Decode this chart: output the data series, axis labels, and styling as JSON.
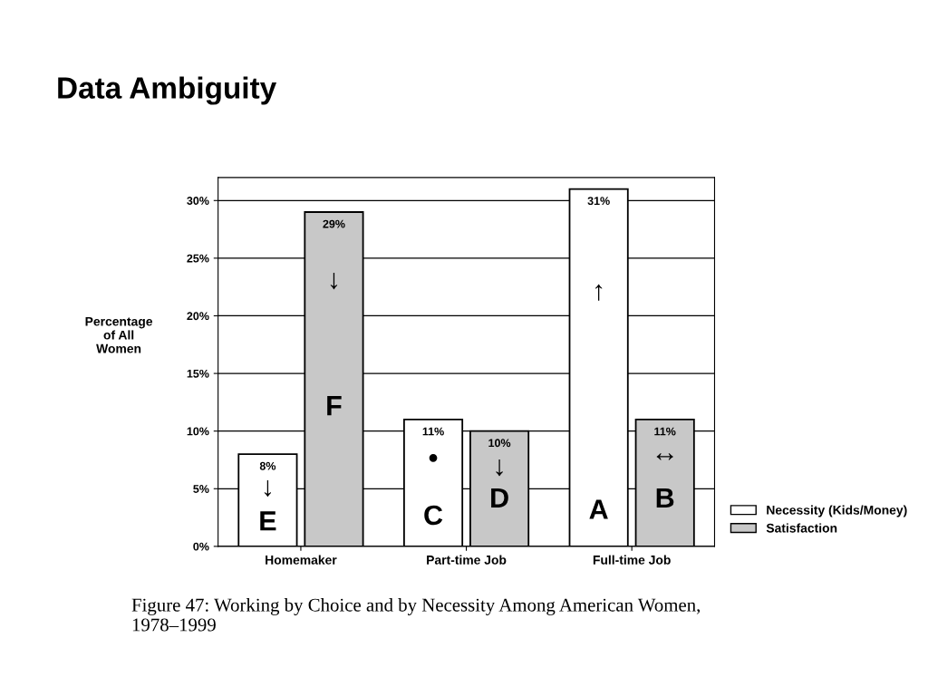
{
  "chart_data": {
    "type": "bar",
    "title": "Data Ambiguity",
    "ylabel": "Percentage\nof All\nWomen",
    "categories": [
      "Homemaker",
      "Part-time Job",
      "Full-time Job"
    ],
    "series": [
      {
        "name": "Necessity (Kids/Money)",
        "color": "#ffffff",
        "values": [
          8,
          11,
          31
        ],
        "value_labels": [
          "8%",
          "11%",
          "31%"
        ]
      },
      {
        "name": "Satisfaction",
        "color": "#c8c8c8",
        "values": [
          29,
          10,
          11
        ],
        "value_labels": [
          "29%",
          "10%",
          "11%"
        ]
      }
    ],
    "ylim": [
      0,
      32
    ],
    "yticks": [
      {
        "value": 0,
        "label": "0%"
      },
      {
        "value": 5,
        "label": "5%"
      },
      {
        "value": 10,
        "label": "10%"
      },
      {
        "value": 15,
        "label": "15%"
      },
      {
        "value": 20,
        "label": "20%"
      },
      {
        "value": 25,
        "label": "25%"
      },
      {
        "value": 30,
        "label": "30%"
      }
    ],
    "grid": "y",
    "legend": "bottom right",
    "annotations": [
      {
        "text": "E",
        "x": "Homemaker",
        "y": 2
      },
      {
        "text": "F",
        "x": "Homemaker",
        "y": 12
      },
      {
        "text": "C",
        "x": "Part-time Job",
        "y": 2.5
      },
      {
        "text": "D",
        "x": "Part-time Job",
        "y": 4
      },
      {
        "text": "A",
        "x": "Full-time Job",
        "y": 3
      },
      {
        "text": "B",
        "x": "Full-time Job",
        "y": 4
      },
      {
        "text": "↓",
        "x": "Homemaker",
        "y": 5
      },
      {
        "text": "↓",
        "x": "Homemaker",
        "y": 23
      },
      {
        "text": "•",
        "x": "Part-time Job",
        "y": 7.5
      },
      {
        "text": "↓",
        "x": "Part-time Job",
        "y": 6.8
      },
      {
        "text": "↑",
        "x": "Full-time Job",
        "y": 22
      },
      {
        "text": "↔",
        "x": "Full-time Job",
        "y": 8
      },
      "Figure 47: Working by Choice and by Necessity Among American Women,\n1978–1999"
    ]
  }
}
